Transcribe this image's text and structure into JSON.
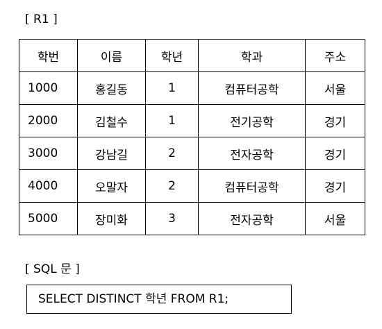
{
  "relation_label": "[ R1 ]",
  "table": {
    "headers": [
      "학번",
      "이름",
      "학년",
      "학과",
      "주소"
    ],
    "rows": [
      [
        "1000",
        "홍길동",
        "1",
        "컴퓨터공학",
        "서울"
      ],
      [
        "2000",
        "김철수",
        "1",
        "전기공학",
        "경기"
      ],
      [
        "3000",
        "강남길",
        "2",
        "전자공학",
        "경기"
      ],
      [
        "4000",
        "오말자",
        "2",
        "컴퓨터공학",
        "경기"
      ],
      [
        "5000",
        "장미화",
        "3",
        "전자공학",
        "서울"
      ]
    ]
  },
  "sql_label": "[ SQL 문 ]",
  "sql_statement": "SELECT DISTINCT 학년 FROM R1;"
}
